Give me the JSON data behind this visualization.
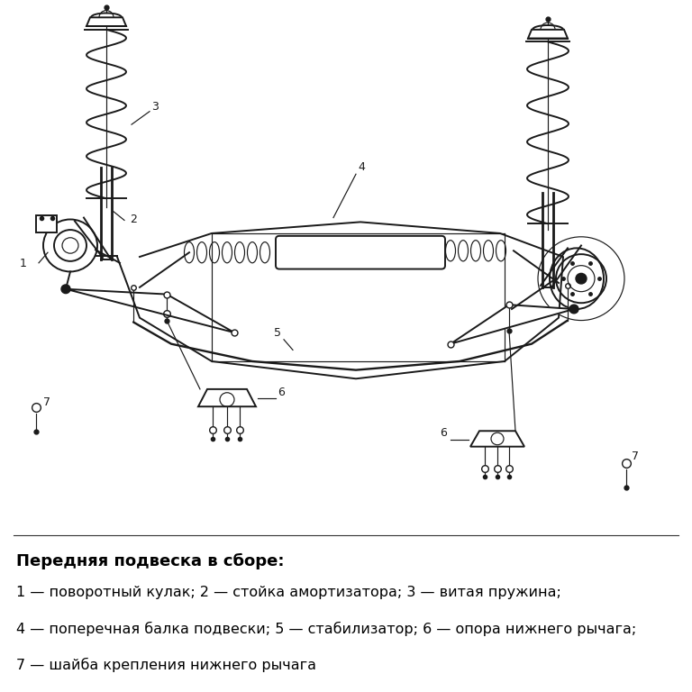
{
  "title": "Передняя подвеска в сборе:",
  "labels": [
    "1 — поворотный кулак; 2 — стойка амортизатора; 3 — витая пружина;",
    "4 — поперечная балка подвески; 5 — стабилизатор; 6 — опора нижнего рычага;",
    "7 — шайба крепления нижнего рычага"
  ],
  "bg_color": "#ffffff",
  "text_color": "#000000",
  "diagram_color": "#1a1a1a",
  "font_size_title": 13,
  "font_size_labels": 11.5,
  "fig_width": 7.68,
  "fig_height": 7.68,
  "dpi": 100
}
